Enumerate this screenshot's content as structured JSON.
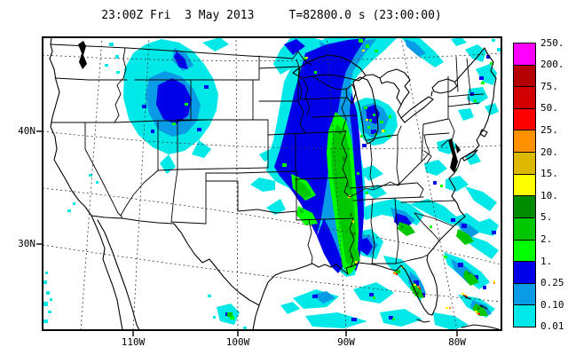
{
  "title": "23:00Z Fri  3 May 2013     T=82800.0 s (23:00:00)",
  "axes": {
    "lat": [
      "40N",
      "30N"
    ],
    "lon": [
      "110W",
      "100W",
      "90W",
      "80W"
    ]
  },
  "colorbar": {
    "boundary_labels": [
      "250.",
      "200.",
      "75.",
      "50.",
      "25.",
      "20.",
      "15.",
      "10.",
      "5.",
      "2.",
      "1.",
      "0.25",
      "0.10",
      "0.01"
    ],
    "cell_palette_keys": [
      "magenta",
      "maroon",
      "red_dark",
      "red",
      "orange",
      "gold",
      "yellow",
      "green_dark",
      "green",
      "green_bright",
      "blue",
      "dodger",
      "cyan"
    ]
  },
  "palette": {
    "magenta": "#FF00FF",
    "maroon": "#B40000",
    "red_dark": "#D20000",
    "red": "#FF0000",
    "orange": "#FF9100",
    "gold": "#DCB900",
    "yellow": "#FFFF00",
    "green_dark": "#008C00",
    "green": "#00C800",
    "green_bright": "#00FF00",
    "blue": "#0000E8",
    "dodger": "#0A9BE6",
    "cyan": "#00E8E8"
  },
  "frame": {
    "stroke": "#000000",
    "background": "#FFFFFF"
  }
}
